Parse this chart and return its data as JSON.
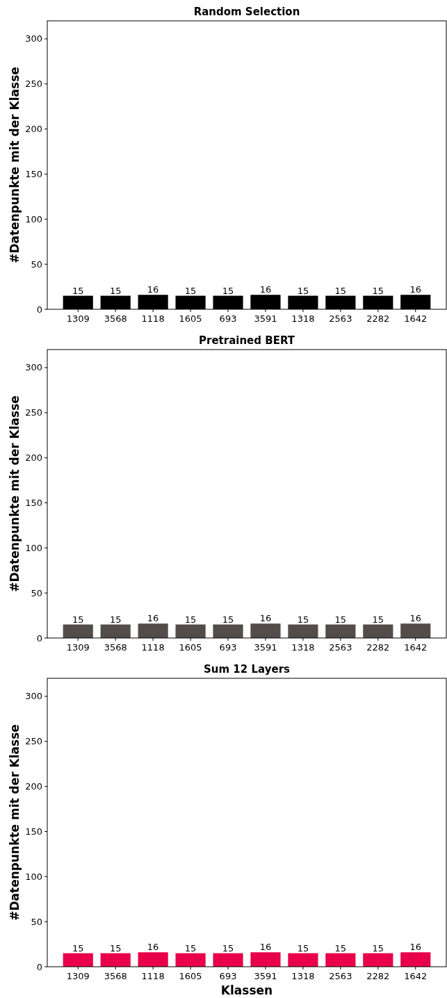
{
  "chart_data": [
    {
      "type": "bar",
      "title": "Random Selection",
      "ylabel": "#Datenpunkte mit der Klasse",
      "categories": [
        "1309",
        "3568",
        "1118",
        "1605",
        "693",
        "3591",
        "1318",
        "2563",
        "2282",
        "1642"
      ],
      "values": [
        15,
        15,
        16,
        15,
        15,
        16,
        15,
        15,
        15,
        16
      ],
      "color": "#000000",
      "ylim": [
        0,
        320
      ],
      "yticks": [
        0,
        50,
        100,
        150,
        200,
        250,
        300
      ],
      "data_labels": true,
      "grid": false
    },
    {
      "type": "bar",
      "title": "Pretrained BERT",
      "ylabel": "#Datenpunkte mit der Klasse",
      "categories": [
        "1309",
        "3568",
        "1118",
        "1605",
        "693",
        "3591",
        "1318",
        "2563",
        "2282",
        "1642"
      ],
      "values": [
        15,
        15,
        16,
        15,
        15,
        16,
        15,
        15,
        15,
        16
      ],
      "color": "#524d4a",
      "ylim": [
        0,
        320
      ],
      "yticks": [
        0,
        50,
        100,
        150,
        200,
        250,
        300
      ],
      "data_labels": true,
      "grid": false
    },
    {
      "type": "bar",
      "title": "Sum 12 Layers",
      "xlabel": "Klassen",
      "ylabel": "#Datenpunkte mit der Klasse",
      "categories": [
        "1309",
        "3568",
        "1118",
        "1605",
        "693",
        "3591",
        "1318",
        "2563",
        "2282",
        "1642"
      ],
      "values": [
        15,
        15,
        16,
        15,
        15,
        16,
        15,
        15,
        15,
        16
      ],
      "color": "#e8004a",
      "ylim": [
        0,
        320
      ],
      "yticks": [
        0,
        50,
        100,
        150,
        200,
        250,
        300
      ],
      "data_labels": true,
      "grid": false
    }
  ]
}
